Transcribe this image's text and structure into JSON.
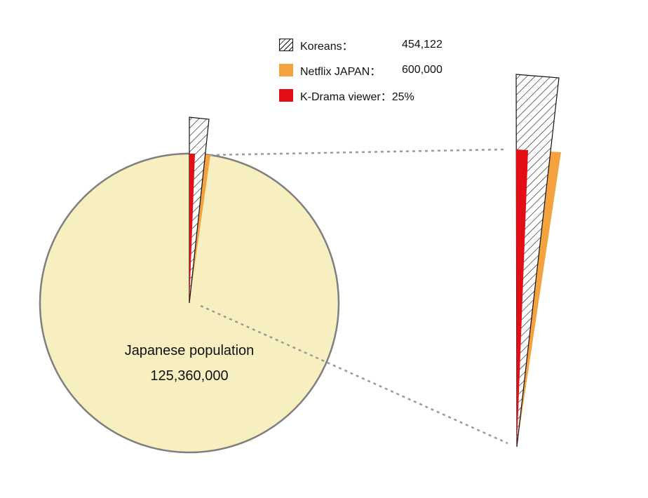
{
  "legend": {
    "items": [
      {
        "key": "koreans",
        "label": "Koreans：",
        "value": "454,122",
        "style": "hatch",
        "color": "#111111"
      },
      {
        "key": "netflix",
        "label": "Netflix JAPAN：",
        "value": "600,000",
        "style": "solid",
        "color": "#f4a23d"
      },
      {
        "key": "kdrama",
        "label": "K-Drama viewer：25%",
        "value": "",
        "style": "solid",
        "color": "#e30d16"
      }
    ]
  },
  "pie": {
    "name": "Japanese population",
    "value": "125,360,000",
    "fill": "#f7efc0",
    "stroke": "#7f7f7f"
  },
  "colors": {
    "hatch": "#111111",
    "orange": "#f4a23d",
    "red": "#e30d16",
    "connector": "#9a9a9a"
  }
}
